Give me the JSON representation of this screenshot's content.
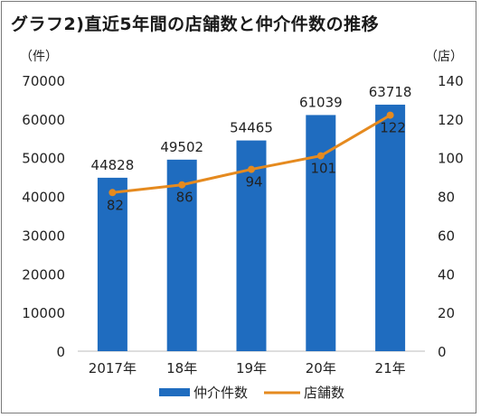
{
  "chart_data": {
    "type": "bar+line",
    "title": "グラフ2)直近5年間の店舗数と仲介件数の推移",
    "categories": [
      "2017年",
      "18年",
      "19年",
      "20年",
      "21年"
    ],
    "series": [
      {
        "name": "仲介件数",
        "type": "bar",
        "axis": "left",
        "color": "#1f6cbf",
        "values": [
          44828,
          49502,
          54465,
          61039,
          63718
        ]
      },
      {
        "name": "店舗数",
        "type": "line",
        "axis": "right",
        "color": "#e58a1f",
        "values": [
          82,
          86,
          94,
          101,
          122
        ]
      }
    ],
    "y_left": {
      "unit": "（件）",
      "ylim": [
        0,
        70000
      ],
      "ticks": [
        0,
        10000,
        20000,
        30000,
        40000,
        50000,
        60000,
        70000
      ]
    },
    "y_right": {
      "unit": "（店）",
      "ylim": [
        0,
        140
      ],
      "ticks": [
        0,
        20,
        40,
        60,
        80,
        100,
        120,
        140
      ]
    },
    "grid": false,
    "legend_position": "bottom"
  }
}
